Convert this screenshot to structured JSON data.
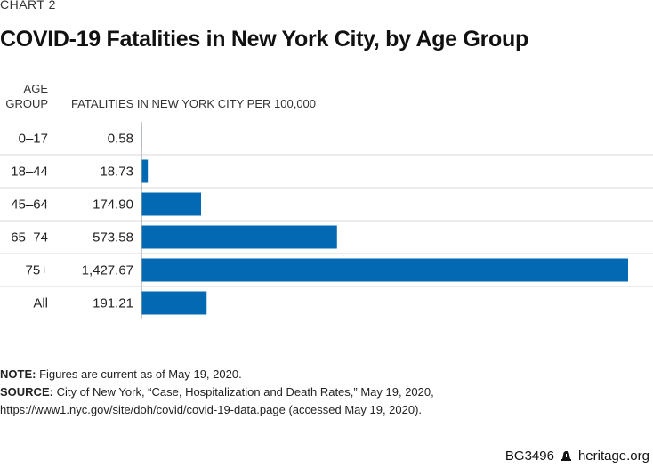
{
  "kicker": "CHART 2",
  "title": "COVID-19 Fatalities in New York City, by Age Group",
  "colors": {
    "bar": "#0369b3",
    "axis": "#a0a0a0",
    "row_divider": "#e6e6e6"
  },
  "chart_data": {
    "type": "bar",
    "orientation": "horizontal",
    "title": "COVID-19 Fatalities in New York City, by Age Group",
    "category_header": "AGE GROUP",
    "category_header_lines": [
      "AGE",
      "GROUP"
    ],
    "value_header": "FATALITIES IN NEW YORK CITY PER 100,000",
    "categories": [
      "0–17",
      "18–44",
      "45–64",
      "65–74",
      "75+",
      "All"
    ],
    "values": [
      0.58,
      18.73,
      174.9,
      573.58,
      1427.67,
      191.21
    ],
    "value_labels": [
      "0.58",
      "18.73",
      "174.90",
      "573.58",
      "1,427.67",
      "191.21"
    ],
    "xlim": [
      0,
      1427.67
    ],
    "grid": false,
    "legend": "none"
  },
  "notes": {
    "note_label": "NOTE:",
    "note_text": " Figures are current as of May 19, 2020.",
    "source_label": "SOURCE:",
    "source_text": " City of New York, “Case, Hospitalization and Death Rates,” May 19, 2020, https://www1.nyc.gov/site/doh/covid/covid-19-data.page (accessed May 19, 2020)."
  },
  "footer": {
    "code": "BG3496",
    "icon": "liberty-bell-icon",
    "site": "heritage.org"
  }
}
